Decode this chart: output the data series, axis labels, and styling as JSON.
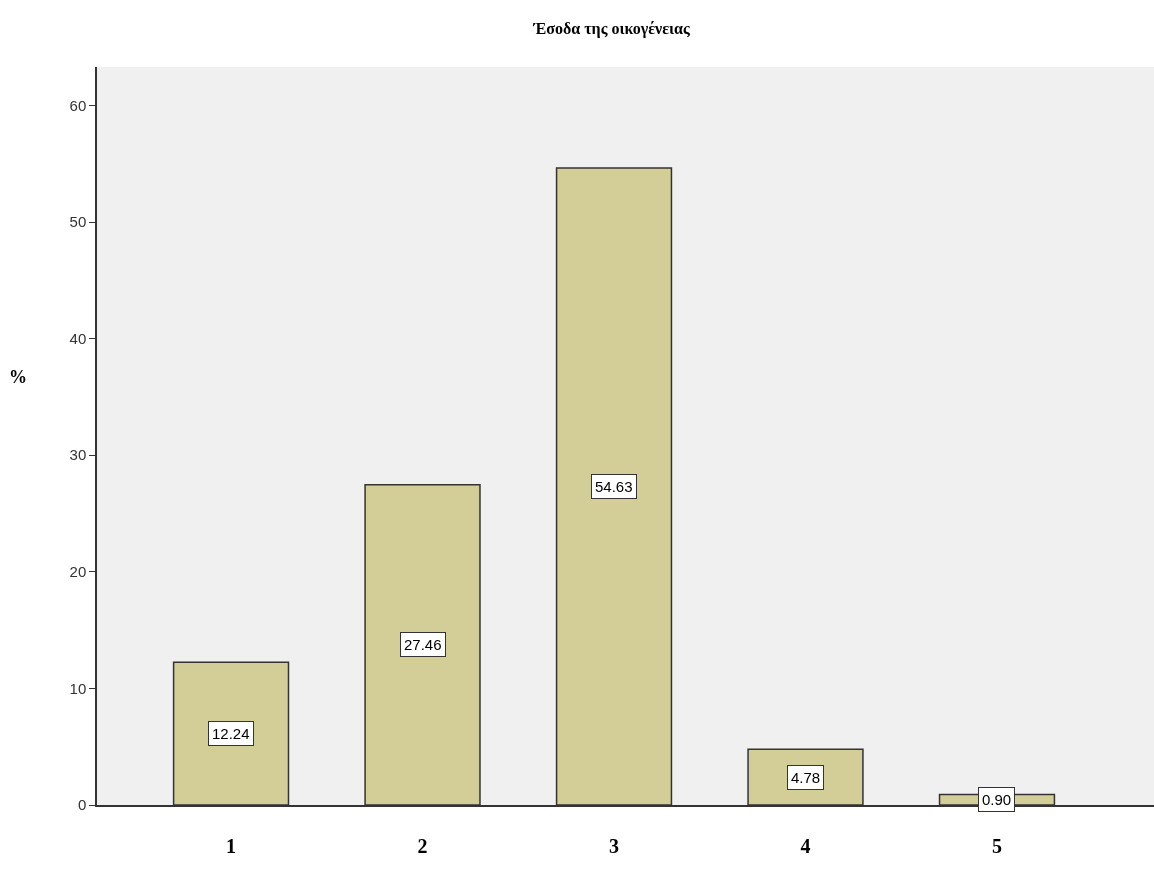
{
  "chart_data": {
    "type": "bar",
    "title": "Έσοδα της οικογένειας",
    "ylabel": "%",
    "categories": [
      "1",
      "2",
      "3",
      "4",
      "5"
    ],
    "values": [
      12.24,
      27.46,
      54.63,
      4.78,
      0.9
    ],
    "value_labels": [
      "12.24",
      "27.46",
      "54.63",
      "4.78",
      "0.90"
    ],
    "color": "#d3ce97",
    "ylim": [
      0,
      63.3
    ],
    "yticks": [
      0,
      10,
      20,
      30,
      40,
      50,
      60
    ],
    "grid": false,
    "legend": false
  }
}
